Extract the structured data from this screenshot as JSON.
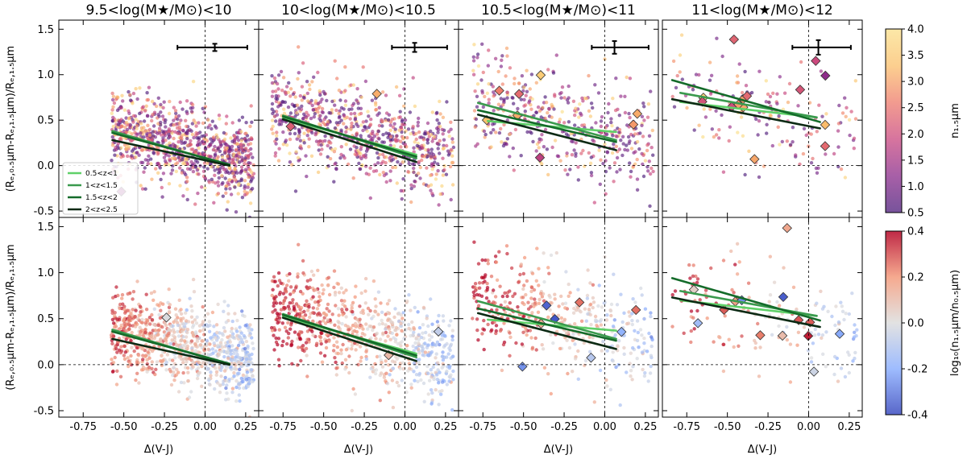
{
  "chart_data": {
    "type": "scatter",
    "panel_titles": [
      "9.5<log(M★/M⊙)<10",
      "10<log(M★/M⊙)<10.5",
      "10.5<log(M★/M⊙)<11",
      "11<log(M★/M⊙)<12"
    ],
    "xlabel": "Δ(V-J)",
    "ylabel": "(Rₑ,₀.₅μm-Rₑ,₁.₅μm)/Rₑ,₁.₅μm",
    "xlim": [
      -0.9,
      0.33
    ],
    "ylim": [
      -0.57,
      1.6
    ],
    "xticks": [
      "-0.75",
      "-0.50",
      "-0.25",
      "0.00",
      "0.25"
    ],
    "yticks": [
      "-0.5",
      "0.0",
      "0.5",
      "1.0",
      "1.5"
    ],
    "reference_lines": {
      "x": 0.0,
      "y": 0.0
    },
    "legend": {
      "placement": "lower-left of top-left panel",
      "entries": [
        {
          "label": "0.5<z<1",
          "color": "#5fd068"
        },
        {
          "label": "1<z<1.5",
          "color": "#3a9a4e"
        },
        {
          "label": "1.5<z<2",
          "color": "#146b2a"
        },
        {
          "label": "2<z<2.5",
          "color": "#0c2a14"
        }
      ]
    },
    "colorbars": [
      {
        "label": "n₁.₅μm",
        "range": [
          0.5,
          4.0
        ],
        "ticks": [
          "0.5",
          "1.0",
          "1.5",
          "2.0",
          "2.5",
          "3.0",
          "3.5",
          "4.0"
        ],
        "colormap": [
          "#4a1a7a",
          "#8a2a8a",
          "#c9467e",
          "#ee7a6a",
          "#fbbf6a",
          "#fbe08a"
        ]
      },
      {
        "label": "log₁₀(n₁.₅μm/n₀.₅μm)",
        "range": [
          -0.4,
          0.4
        ],
        "ticks": [
          "-0.4",
          "-0.2",
          "0.0",
          "0.2",
          "0.4"
        ],
        "colormap": [
          "#3b4cc0",
          "#8db0fe",
          "#dddddd",
          "#f49a7b",
          "#b40426"
        ]
      }
    ],
    "error_bars": [
      {
        "x": 0.06,
        "y": 1.3,
        "xerr": [
          0.23,
          0.2
        ],
        "yerr": 0.04
      },
      {
        "x": 0.06,
        "y": 1.3,
        "xerr": [
          0.14,
          0.2
        ],
        "yerr": 0.05
      },
      {
        "x": 0.06,
        "y": 1.3,
        "xerr": [
          0.14,
          0.21
        ],
        "yerr": 0.07
      },
      {
        "x": 0.06,
        "y": 1.3,
        "xerr": [
          0.16,
          0.2
        ],
        "yerr": 0.08
      }
    ],
    "panels": [
      {
        "xrange": [
          -0.58,
          0.3
        ],
        "ycenter": 0.22,
        "yspread": 0.32,
        "npts": 900,
        "ndiamonds": 1,
        "fits": [
          {
            "z": "0.5<z<1",
            "x": [
              -0.57,
              0.15
            ],
            "y": [
              0.37,
              0.01
            ]
          },
          {
            "z": "1<z<1.5",
            "x": [
              -0.57,
              0.15
            ],
            "y": [
              0.38,
              0.0
            ]
          },
          {
            "z": "1.5<z<2",
            "x": [
              -0.57,
              0.15
            ],
            "y": [
              0.36,
              0.01
            ]
          },
          {
            "z": "2<z<2.5",
            "x": [
              -0.57,
              0.15
            ],
            "y": [
              0.28,
              0.0
            ]
          }
        ]
      },
      {
        "xrange": [
          -0.82,
          0.3
        ],
        "ycenter": 0.35,
        "yspread": 0.35,
        "npts": 750,
        "ndiamonds": 2,
        "fits": [
          {
            "z": "0.5<z<1",
            "x": [
              -0.75,
              0.07
            ],
            "y": [
              0.52,
              0.12
            ]
          },
          {
            "z": "1<z<1.5",
            "x": [
              -0.75,
              0.07
            ],
            "y": [
              0.55,
              0.08
            ]
          },
          {
            "z": "1.5<z<2",
            "x": [
              -0.75,
              0.07
            ],
            "y": [
              0.54,
              0.1
            ]
          },
          {
            "z": "2<z<2.5",
            "x": [
              -0.75,
              0.07
            ],
            "y": [
              0.51,
              0.04
            ]
          }
        ]
      },
      {
        "xrange": [
          -0.82,
          0.3
        ],
        "ycenter": 0.48,
        "yspread": 0.38,
        "npts": 420,
        "ndiamonds": 8,
        "fits": [
          {
            "z": "0.5<z<1",
            "x": [
              -0.72,
              0.07
            ],
            "y": [
              0.49,
              0.37
            ]
          },
          {
            "z": "1<z<1.5",
            "x": [
              -0.78,
              0.07
            ],
            "y": [
              0.69,
              0.28
            ]
          },
          {
            "z": "1.5<z<2",
            "x": [
              -0.78,
              0.07
            ],
            "y": [
              0.61,
              0.26
            ]
          },
          {
            "z": "2<z<2.5",
            "x": [
              -0.78,
              0.07
            ],
            "y": [
              0.56,
              0.17
            ]
          }
        ]
      },
      {
        "xrange": [
          -0.84,
          0.3
        ],
        "ycenter": 0.55,
        "yspread": 0.4,
        "npts": 160,
        "ndiamonds": 14,
        "fits": [
          {
            "z": "0.5<z<1",
            "x": [
              -0.79,
              0.05
            ],
            "y": [
              0.7,
              0.53
            ]
          },
          {
            "z": "1<z<1.5",
            "x": [
              -0.79,
              0.05
            ],
            "y": [
              0.8,
              0.53
            ]
          },
          {
            "z": "1.5<z<2",
            "x": [
              -0.84,
              0.07
            ],
            "y": [
              0.94,
              0.48
            ]
          },
          {
            "z": "2<z<2.5",
            "x": [
              -0.84,
              0.07
            ],
            "y": [
              0.73,
              0.41
            ]
          }
        ]
      }
    ]
  }
}
